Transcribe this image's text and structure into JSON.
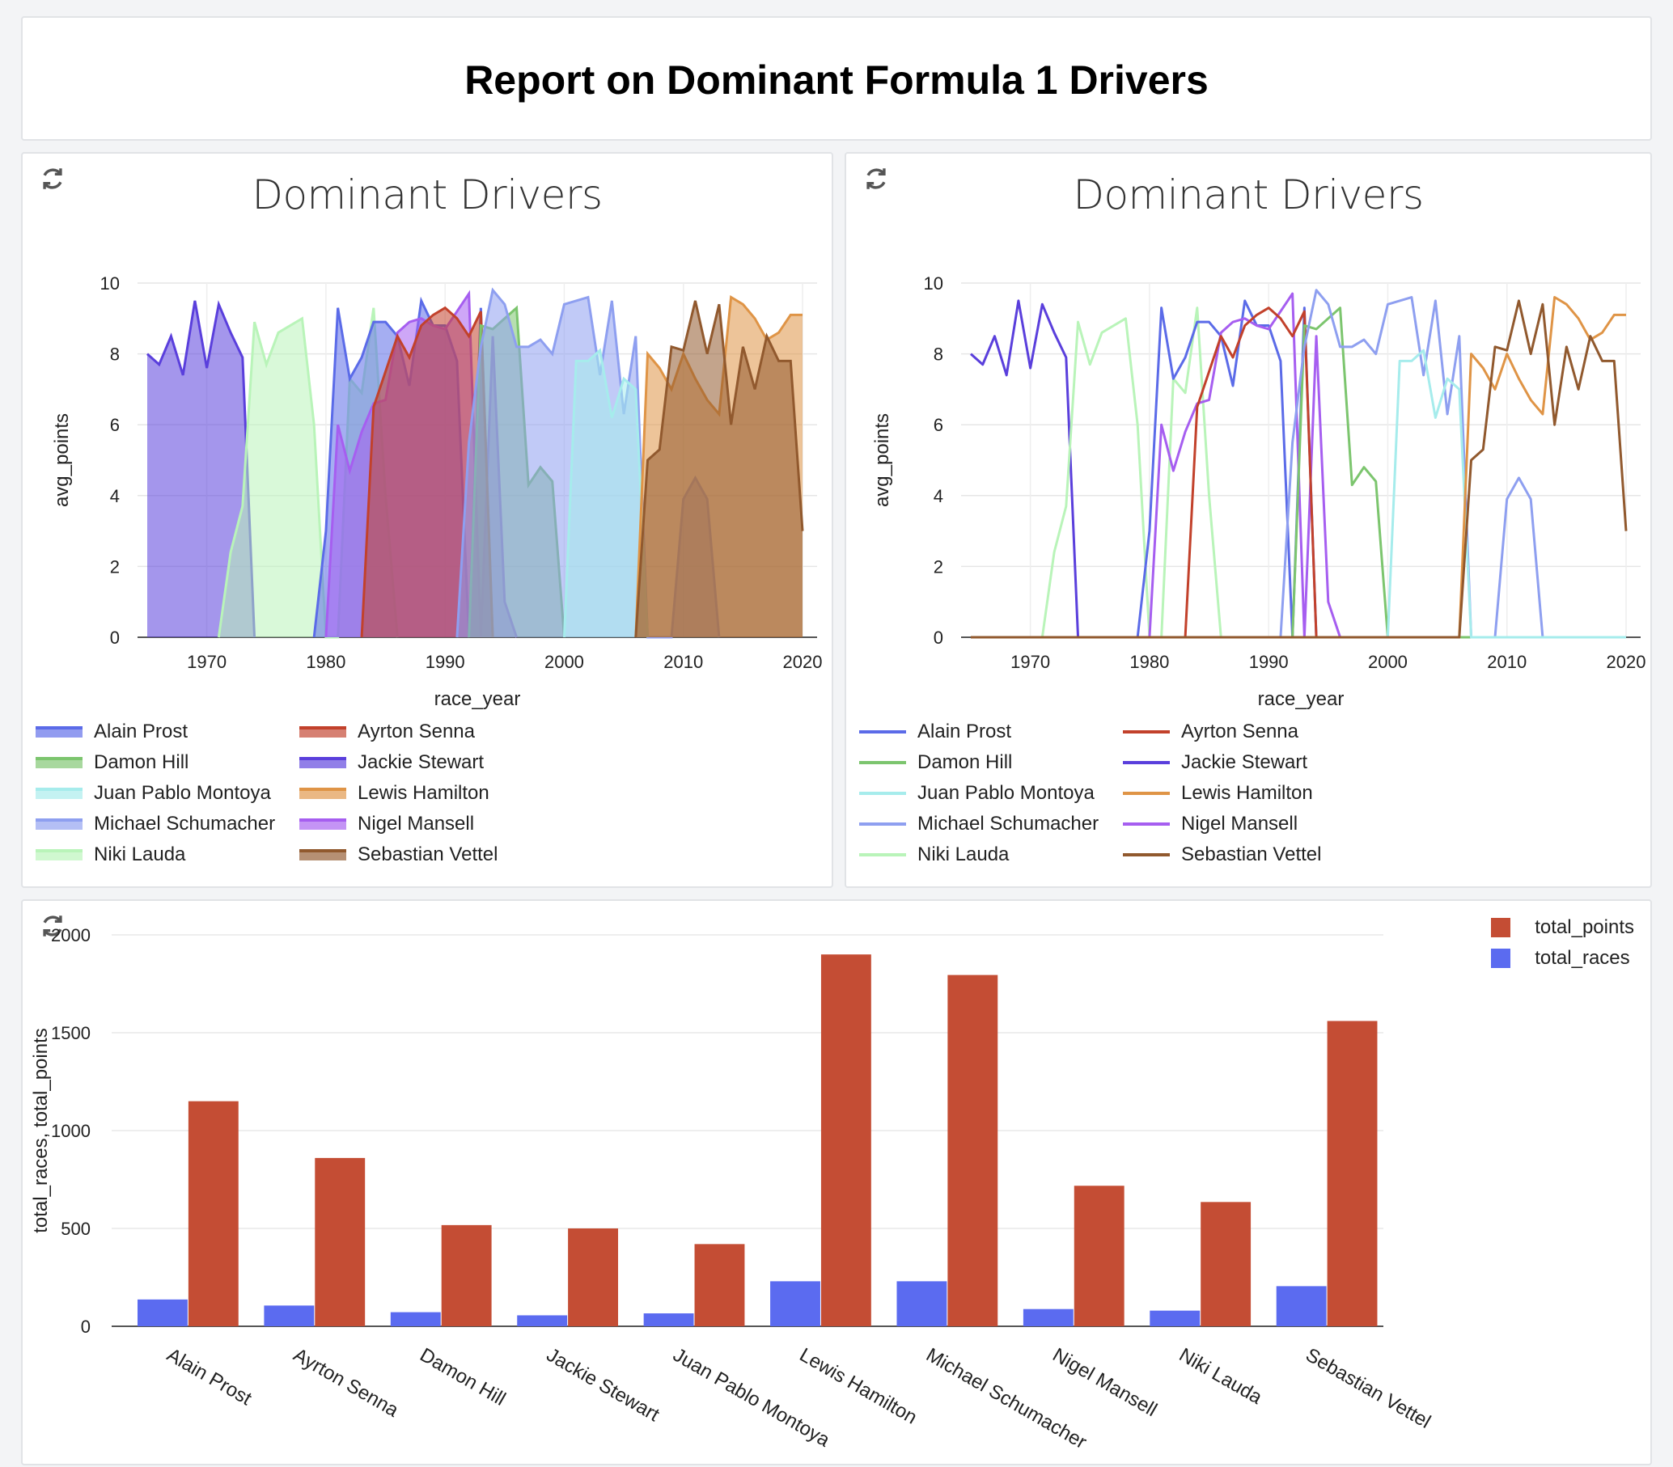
{
  "report": {
    "title": "Report on Dominant Formula 1 Drivers"
  },
  "colors": {
    "Alain Prost": "#5b6be8",
    "Ayrton Senna": "#c2412b",
    "Damon Hill": "#7cc56e",
    "Jackie Stewart": "#5a3fdc",
    "Juan Pablo Montoya": "#a6ecec",
    "Lewis Hamilton": "#df9446",
    "Michael Schumacher": "#8e9ff0",
    "Nigel Mansell": "#a65ef0",
    "Niki Lauda": "#b9f4b9",
    "Sebastian Vettel": "#91592e"
  },
  "drivers": [
    "Alain Prost",
    "Ayrton Senna",
    "Damon Hill",
    "Jackie Stewart",
    "Juan Pablo Montoya",
    "Lewis Hamilton",
    "Michael Schumacher",
    "Nigel Mansell",
    "Niki Lauda",
    "Sebastian Vettel"
  ],
  "panels": {
    "area": {
      "title": "Dominant Drivers",
      "refresh_icon": "refresh-icon"
    },
    "line": {
      "title": "Dominant Drivers",
      "refresh_icon": "refresh-icon"
    },
    "bar": {
      "refresh_icon": "refresh-icon"
    }
  },
  "chart_data": [
    {
      "type": "area",
      "title": "Dominant Drivers",
      "xlabel": "race_year",
      "ylabel": "avg_points",
      "xlim": [
        1965,
        2020
      ],
      "ylim": [
        0,
        10
      ],
      "xticks": [
        1970,
        1980,
        1990,
        2000,
        2010,
        2020
      ],
      "yticks": [
        0,
        2,
        4,
        6,
        8,
        10
      ],
      "grid": true,
      "legend_position": "bottom",
      "series": [
        {
          "name": "Jackie Stewart",
          "points": [
            [
              1965,
              8.0
            ],
            [
              1966,
              7.7
            ],
            [
              1967,
              8.5
            ],
            [
              1968,
              7.4
            ],
            [
              1969,
              9.5
            ],
            [
              1970,
              7.6
            ],
            [
              1971,
              9.4
            ],
            [
              1972,
              8.6
            ],
            [
              1973,
              7.9
            ],
            [
              1974,
              0
            ]
          ]
        },
        {
          "name": "Niki Lauda",
          "points": [
            [
              1971,
              0
            ],
            [
              1972,
              2.4
            ],
            [
              1973,
              3.7
            ],
            [
              1974,
              8.9
            ],
            [
              1975,
              7.7
            ],
            [
              1976,
              8.6
            ],
            [
              1977,
              8.8
            ],
            [
              1978,
              9.0
            ],
            [
              1979,
              6.0
            ],
            [
              1980,
              0
            ],
            [
              1981,
              0
            ],
            [
              1982,
              7.3
            ],
            [
              1983,
              6.9
            ],
            [
              1984,
              9.3
            ],
            [
              1985,
              4.0
            ],
            [
              1986,
              0
            ]
          ]
        },
        {
          "name": "Alain Prost",
          "points": [
            [
              1979,
              0
            ],
            [
              1980,
              3.0
            ],
            [
              1981,
              9.3
            ],
            [
              1982,
              7.3
            ],
            [
              1983,
              7.9
            ],
            [
              1984,
              8.9
            ],
            [
              1985,
              8.9
            ],
            [
              1986,
              8.5
            ],
            [
              1987,
              7.1
            ],
            [
              1988,
              9.5
            ],
            [
              1989,
              8.8
            ],
            [
              1990,
              8.8
            ],
            [
              1991,
              7.8
            ],
            [
              1992,
              0
            ],
            [
              1993,
              9.3
            ],
            [
              1994,
              0
            ]
          ]
        },
        {
          "name": "Nigel Mansell",
          "points": [
            [
              1980,
              0
            ],
            [
              1981,
              6.0
            ],
            [
              1982,
              4.7
            ],
            [
              1983,
              5.8
            ],
            [
              1984,
              6.6
            ],
            [
              1985,
              6.7
            ],
            [
              1986,
              8.6
            ],
            [
              1987,
              8.9
            ],
            [
              1988,
              9.0
            ],
            [
              1989,
              8.8
            ],
            [
              1990,
              8.7
            ],
            [
              1991,
              9.2
            ],
            [
              1992,
              9.7
            ],
            [
              1993,
              0
            ],
            [
              1994,
              8.5
            ],
            [
              1995,
              1.0
            ],
            [
              1996,
              0
            ]
          ]
        },
        {
          "name": "Ayrton Senna",
          "points": [
            [
              1983,
              0
            ],
            [
              1984,
              6.5
            ],
            [
              1985,
              7.5
            ],
            [
              1986,
              8.5
            ],
            [
              1987,
              7.9
            ],
            [
              1988,
              8.8
            ],
            [
              1989,
              9.1
            ],
            [
              1990,
              9.3
            ],
            [
              1991,
              9.0
            ],
            [
              1992,
              8.5
            ],
            [
              1993,
              9.2
            ],
            [
              1994,
              0
            ]
          ]
        },
        {
          "name": "Damon Hill",
          "points": [
            [
              1992,
              0
            ],
            [
              1993,
              8.8
            ],
            [
              1994,
              8.7
            ],
            [
              1995,
              9.0
            ],
            [
              1996,
              9.3
            ],
            [
              1997,
              4.3
            ],
            [
              1998,
              4.8
            ],
            [
              1999,
              4.4
            ],
            [
              2000,
              0
            ]
          ]
        },
        {
          "name": "Michael Schumacher",
          "points": [
            [
              1991,
              0
            ],
            [
              1992,
              5.5
            ],
            [
              1993,
              8.2
            ],
            [
              1994,
              9.8
            ],
            [
              1995,
              9.4
            ],
            [
              1996,
              8.2
            ],
            [
              1997,
              8.2
            ],
            [
              1998,
              8.4
            ],
            [
              1999,
              8.0
            ],
            [
              2000,
              9.4
            ],
            [
              2001,
              9.5
            ],
            [
              2002,
              9.6
            ],
            [
              2003,
              7.4
            ],
            [
              2004,
              9.5
            ],
            [
              2005,
              6.3
            ],
            [
              2006,
              8.5
            ],
            [
              2007,
              0
            ],
            [
              2009,
              0
            ],
            [
              2010,
              3.9
            ],
            [
              2011,
              4.5
            ],
            [
              2012,
              3.9
            ],
            [
              2013,
              0
            ]
          ]
        },
        {
          "name": "Juan Pablo Montoya",
          "points": [
            [
              2000,
              0
            ],
            [
              2001,
              7.8
            ],
            [
              2002,
              7.8
            ],
            [
              2003,
              8.1
            ],
            [
              2004,
              6.2
            ],
            [
              2005,
              7.3
            ],
            [
              2006,
              7.0
            ],
            [
              2007,
              0
            ]
          ]
        },
        {
          "name": "Lewis Hamilton",
          "points": [
            [
              2006,
              0
            ],
            [
              2007,
              8.0
            ],
            [
              2008,
              7.6
            ],
            [
              2009,
              7.0
            ],
            [
              2010,
              8.0
            ],
            [
              2011,
              7.3
            ],
            [
              2012,
              6.7
            ],
            [
              2013,
              6.3
            ],
            [
              2014,
              9.6
            ],
            [
              2015,
              9.4
            ],
            [
              2016,
              9.0
            ],
            [
              2017,
              8.4
            ],
            [
              2018,
              8.6
            ],
            [
              2019,
              9.1
            ],
            [
              2020,
              9.1
            ]
          ]
        },
        {
          "name": "Sebastian Vettel",
          "points": [
            [
              2006,
              0
            ],
            [
              2007,
              5.0
            ],
            [
              2008,
              5.3
            ],
            [
              2009,
              8.2
            ],
            [
              2010,
              8.1
            ],
            [
              2011,
              9.5
            ],
            [
              2012,
              8.0
            ],
            [
              2013,
              9.4
            ],
            [
              2014,
              6.0
            ],
            [
              2015,
              8.2
            ],
            [
              2016,
              7.0
            ],
            [
              2017,
              8.5
            ],
            [
              2018,
              7.8
            ],
            [
              2019,
              7.8
            ],
            [
              2020,
              3.0
            ]
          ]
        }
      ]
    },
    {
      "type": "line",
      "title": "Dominant Drivers",
      "xlabel": "race_year",
      "ylabel": "avg_points",
      "xlim": [
        1965,
        2020
      ],
      "ylim": [
        0,
        10
      ],
      "xticks": [
        1970,
        1980,
        1990,
        2000,
        2010,
        2020
      ],
      "yticks": [
        0,
        2,
        4,
        6,
        8,
        10
      ],
      "grid": true,
      "legend_position": "bottom",
      "same_series_as": 0
    },
    {
      "type": "bar",
      "categories": [
        "Alain Prost",
        "Ayrton Senna",
        "Damon Hill",
        "Jackie Stewart",
        "Juan Pablo Montoya",
        "Lewis Hamilton",
        "Michael Schumacher",
        "Nigel Mansell",
        "Niki Lauda",
        "Sebastian Vettel"
      ],
      "series": [
        {
          "name": "total_races",
          "color": "#5b6bf0",
          "values": [
            137,
            106,
            72,
            56,
            66,
            230,
            230,
            88,
            80,
            205
          ]
        },
        {
          "name": "total_points",
          "color": "#c44d34",
          "values": [
            1150,
            860,
            517,
            500,
            420,
            1900,
            1795,
            718,
            635,
            1560
          ]
        }
      ],
      "ylabel": "total_races, total_points",
      "ylim": [
        0,
        2000
      ],
      "yticks": [
        0,
        500,
        1000,
        1500,
        2000
      ],
      "legend_position": "top-right",
      "legend_order": [
        "total_points",
        "total_races"
      ]
    }
  ]
}
